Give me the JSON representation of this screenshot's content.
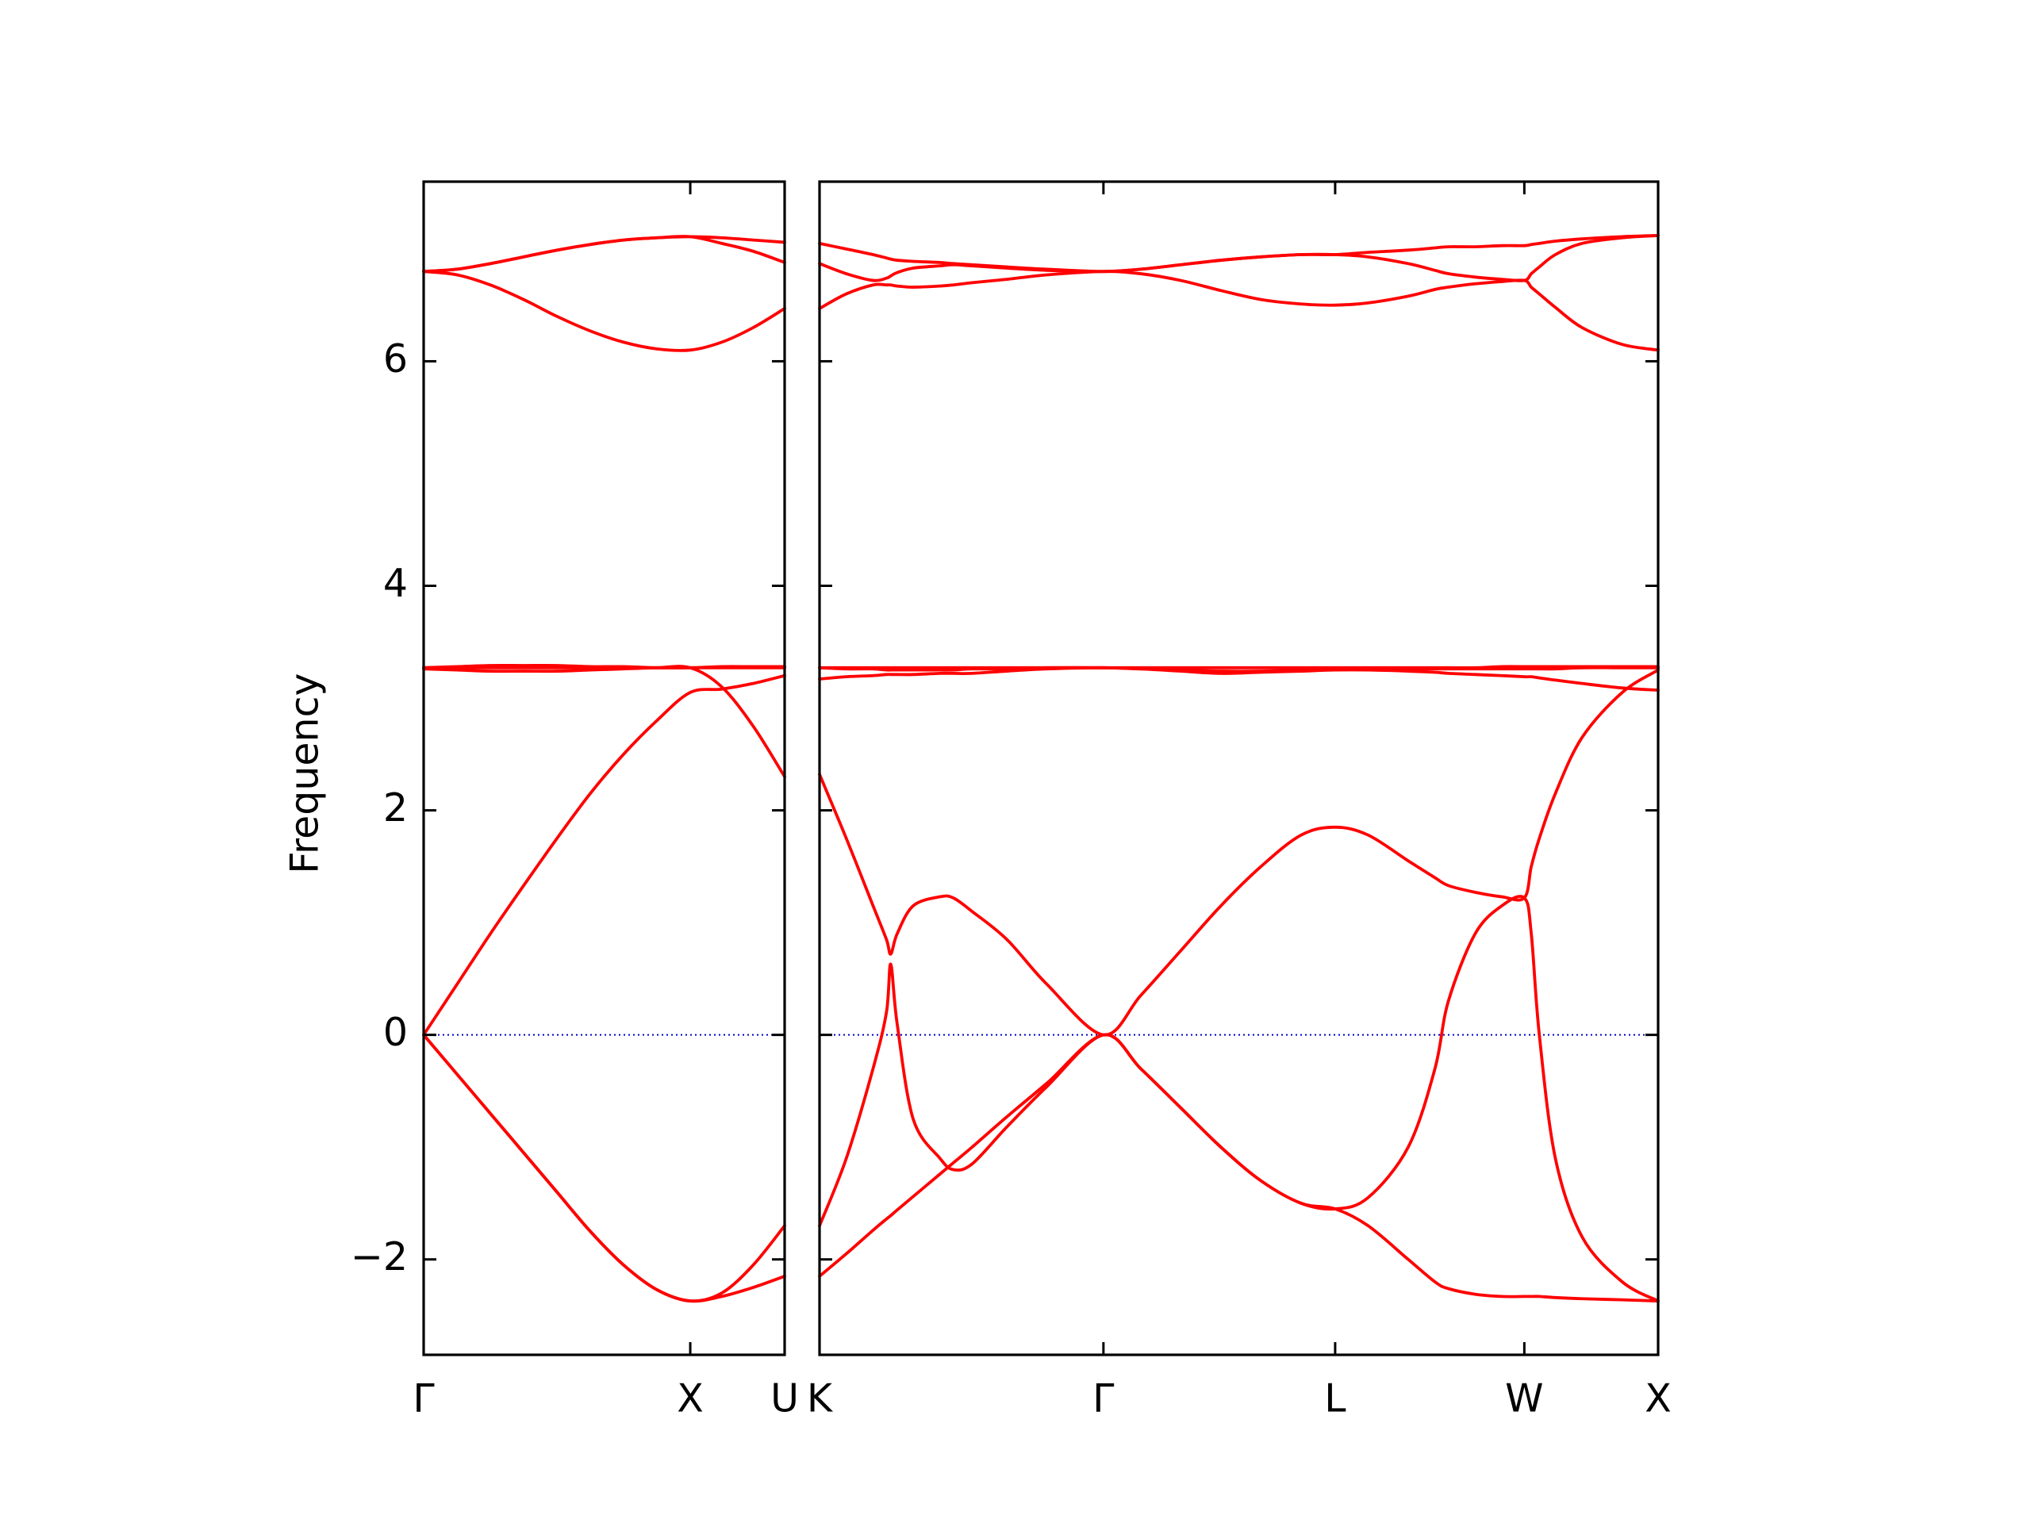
{
  "chart_data": [
    {
      "type": "line",
      "y_label": "Frequency",
      "color": "#ff0000",
      "x": [
        0,
        0.125,
        0.25,
        0.375,
        0.5,
        0.625,
        0.75,
        0.875,
        1,
        1.118,
        1.236,
        1.354
      ],
      "xlim": [
        0,
        1.354
      ],
      "xticks": [
        {
          "value": 0,
          "label": "Γ"
        },
        {
          "value": 1,
          "label": "X"
        },
        {
          "value": 1.354,
          "label": "U"
        }
      ],
      "ylim": [
        -2.85,
        7.6
      ],
      "yticks": [
        {
          "value": -2,
          "label": "−2"
        },
        0,
        2,
        4,
        6
      ],
      "ytick_labels": true,
      "series": [
        {
          "values": [
            0,
            -0.35,
            -0.7,
            -1.05,
            -1.4,
            -1.75,
            -2.05,
            -2.27,
            -2.37,
            -2.33,
            -2.25,
            -2.15
          ]
        },
        {
          "values": [
            0,
            -0.35,
            -0.7,
            -1.05,
            -1.4,
            -1.75,
            -2.05,
            -2.27,
            -2.37,
            -2.3,
            -2.05,
            -1.7
          ]
        },
        {
          "values": [
            0,
            0.45,
            0.9,
            1.33,
            1.75,
            2.15,
            2.5,
            2.8,
            3.05,
            3.08,
            3.13,
            3.2
          ]
        },
        {
          "values": [
            3.26,
            3.25,
            3.24,
            3.24,
            3.24,
            3.25,
            3.26,
            3.27,
            3.27,
            3.1,
            2.75,
            2.3
          ]
        },
        {
          "values": [
            3.27,
            3.27,
            3.27,
            3.27,
            3.27,
            3.27,
            3.27,
            3.27,
            3.27,
            3.27,
            3.27,
            3.27
          ]
        },
        {
          "values": [
            3.27,
            3.28,
            3.29,
            3.29,
            3.29,
            3.28,
            3.28,
            3.27,
            3.27,
            3.28,
            3.28,
            3.28
          ]
        },
        {
          "values": [
            6.8,
            6.77,
            6.68,
            6.55,
            6.4,
            6.27,
            6.17,
            6.11,
            6.1,
            6.17,
            6.3,
            6.47
          ]
        },
        {
          "values": [
            6.8,
            6.82,
            6.87,
            6.93,
            6.99,
            7.04,
            7.08,
            7.1,
            7.11,
            7.1,
            7.08,
            7.06
          ]
        },
        {
          "values": [
            6.8,
            6.82,
            6.87,
            6.93,
            6.99,
            7.04,
            7.08,
            7.1,
            7.11,
            7.05,
            6.98,
            6.88
          ]
        }
      ]
    },
    {
      "type": "line",
      "color": "#ff0000",
      "x": [
        0,
        0.1,
        0.2,
        0.25,
        0.266,
        0.29,
        0.35,
        0.45,
        0.5,
        0.57,
        0.7,
        0.85,
        1.061,
        1.2,
        1.35,
        1.5,
        1.65,
        1.8,
        1.927,
        2.05,
        2.2,
        2.3,
        2.35,
        2.45,
        2.55,
        2.634,
        2.66,
        2.69,
        2.75,
        2.85,
        3,
        3.134
      ],
      "xlim": [
        0,
        3.134
      ],
      "xticks": [
        {
          "value": 0,
          "label": "K"
        },
        {
          "value": 1.061,
          "label": "Γ"
        },
        {
          "value": 1.927,
          "label": "L"
        },
        {
          "value": 2.634,
          "label": "W"
        },
        {
          "value": 3.134,
          "label": "X"
        }
      ],
      "ylim": [
        -2.85,
        7.6
      ],
      "yticks": [
        -2,
        0,
        2,
        4,
        6
      ],
      "ytick_labels": false,
      "series": [
        {
          "values": [
            -2.15,
            -1.95,
            -1.74,
            -1.64,
            -1.61,
            -1.56,
            -1.44,
            -1.24,
            -1.14,
            -1.0,
            -0.73,
            -0.43,
            0,
            -0.3,
            -0.65,
            -1.0,
            -1.3,
            -1.5,
            -1.55,
            -1.7,
            -2.0,
            -2.2,
            -2.26,
            -2.31,
            -2.33,
            -2.33,
            -2.33,
            -2.33,
            -2.34,
            -2.35,
            -2.36,
            -2.37
          ]
        },
        {
          "values": [
            -1.7,
            -1.1,
            -0.3,
            0.2,
            0.63,
            0.1,
            -0.75,
            -1.1,
            -1.2,
            -1.15,
            -0.82,
            -0.46,
            0,
            -0.3,
            -0.65,
            -1.0,
            -1.3,
            -1.5,
            -1.55,
            -1.45,
            -1.0,
            -0.3,
            0.3,
            0.9,
            1.15,
            1.22,
            0.9,
            0,
            -1.1,
            -1.8,
            -2.2,
            -2.37
          ]
        },
        {
          "values": [
            2.32,
            1.75,
            1.15,
            0.85,
            0.72,
            0.9,
            1.15,
            1.23,
            1.22,
            1.1,
            0.85,
            0.45,
            0,
            0.35,
            0.75,
            1.15,
            1.5,
            1.78,
            1.85,
            1.78,
            1.55,
            1.4,
            1.33,
            1.27,
            1.23,
            1.22,
            1.5,
            1.75,
            2.15,
            2.65,
            3.05,
            3.25
          ]
        },
        {
          "values": [
            3.17,
            3.19,
            3.2,
            3.21,
            3.21,
            3.21,
            3.21,
            3.22,
            3.22,
            3.22,
            3.24,
            3.26,
            3.27,
            3.26,
            3.24,
            3.22,
            3.23,
            3.24,
            3.25,
            3.25,
            3.24,
            3.23,
            3.22,
            3.21,
            3.2,
            3.19,
            3.19,
            3.18,
            3.16,
            3.13,
            3.09,
            3.07
          ]
        },
        {
          "values": [
            3.27,
            3.26,
            3.26,
            3.25,
            3.25,
            3.25,
            3.25,
            3.25,
            3.25,
            3.26,
            3.26,
            3.27,
            3.27,
            3.26,
            3.25,
            3.24,
            3.24,
            3.25,
            3.26,
            3.26,
            3.26,
            3.26,
            3.26,
            3.26,
            3.26,
            3.26,
            3.26,
            3.26,
            3.26,
            3.27,
            3.27,
            3.27
          ]
        },
        {
          "values": [
            3.27,
            3.27,
            3.27,
            3.27,
            3.27,
            3.27,
            3.27,
            3.27,
            3.27,
            3.27,
            3.27,
            3.27,
            3.27,
            3.27,
            3.27,
            3.27,
            3.27,
            3.27,
            3.27,
            3.27,
            3.27,
            3.27,
            3.27,
            3.27,
            3.28,
            3.28,
            3.28,
            3.28,
            3.28,
            3.28,
            3.28,
            3.28
          ]
        },
        {
          "values": [
            6.47,
            6.6,
            6.68,
            6.68,
            6.68,
            6.67,
            6.66,
            6.67,
            6.68,
            6.7,
            6.73,
            6.77,
            6.8,
            6.78,
            6.72,
            6.63,
            6.55,
            6.51,
            6.5,
            6.52,
            6.58,
            6.64,
            6.66,
            6.69,
            6.71,
            6.72,
            6.66,
            6.6,
            6.48,
            6.3,
            6.15,
            6.1
          ]
        },
        {
          "values": [
            6.87,
            6.78,
            6.72,
            6.74,
            6.76,
            6.79,
            6.83,
            6.85,
            6.86,
            6.85,
            6.83,
            6.81,
            6.8,
            6.82,
            6.86,
            6.9,
            6.93,
            6.95,
            6.95,
            6.93,
            6.87,
            6.81,
            6.78,
            6.75,
            6.73,
            6.72,
            6.78,
            6.84,
            6.95,
            7.05,
            7.1,
            7.12
          ]
        },
        {
          "values": [
            7.05,
            7.0,
            6.95,
            6.92,
            6.91,
            6.9,
            6.89,
            6.88,
            6.87,
            6.86,
            6.84,
            6.82,
            6.8,
            6.82,
            6.86,
            6.9,
            6.93,
            6.95,
            6.95,
            6.97,
            6.99,
            7.01,
            7.02,
            7.02,
            7.03,
            7.03,
            7.04,
            7.05,
            7.07,
            7.09,
            7.11,
            7.12
          ]
        }
      ]
    }
  ]
}
